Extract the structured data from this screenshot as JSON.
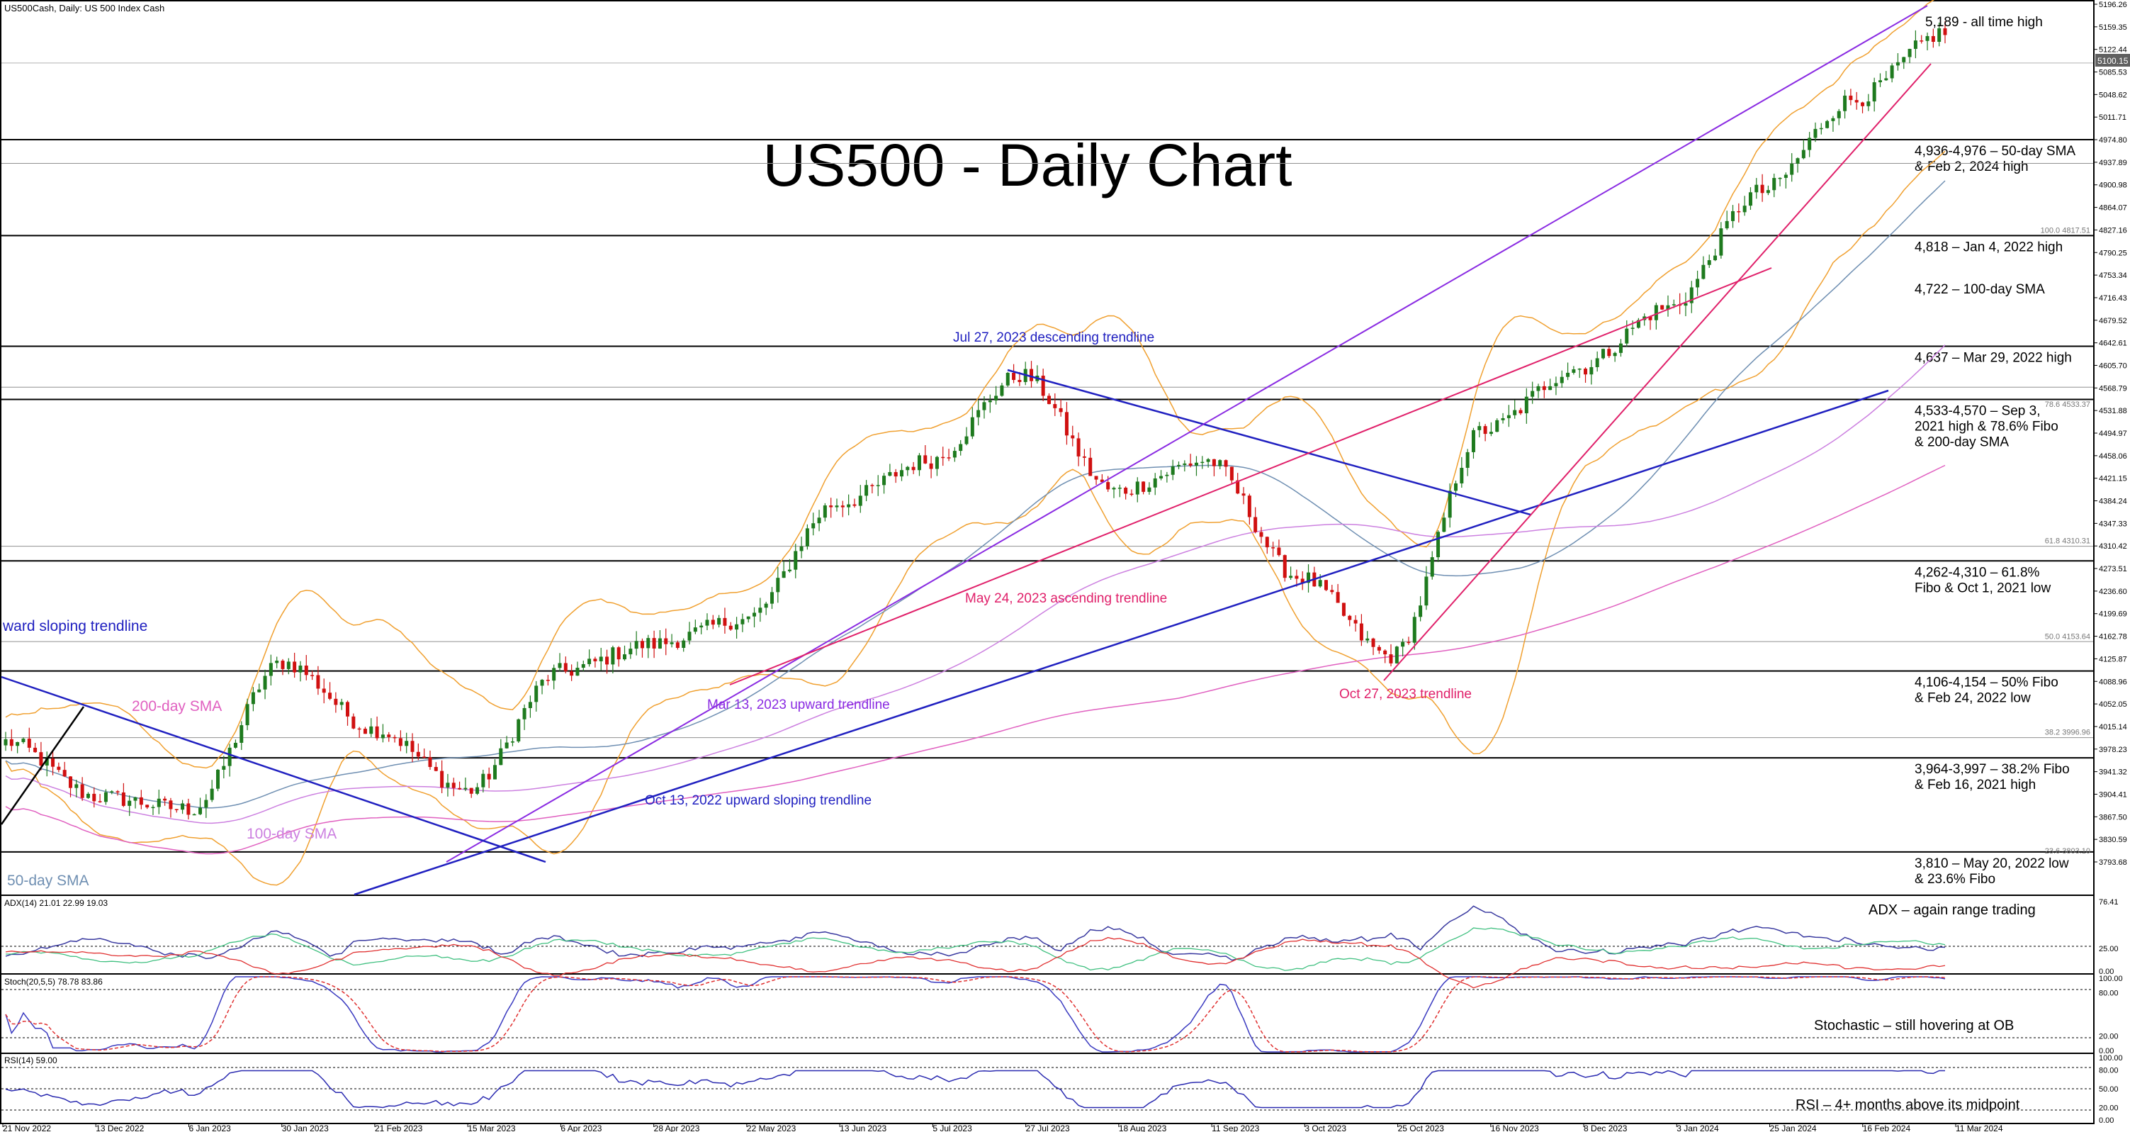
{
  "header": {
    "symbol": "US500Cash, Daily:  US 500 Index Cash",
    "title": "US500 - Daily Chart"
  },
  "price_axis": {
    "ticks": [
      "5196.26",
      "5159.35",
      "5122.44",
      "5085.53",
      "5048.62",
      "5011.71",
      "4974.80",
      "4937.89",
      "4900.98",
      "4864.07",
      "4827.16",
      "4790.25",
      "4753.34",
      "4716.43",
      "4679.52",
      "4642.61",
      "4605.70",
      "4568.79",
      "4531.88",
      "4494.97",
      "4458.06",
      "4421.15",
      "4384.24",
      "4347.33",
      "4310.42",
      "4273.51",
      "4236.60",
      "4199.69",
      "4162.78",
      "4125.87",
      "4088.96",
      "4052.05",
      "4015.14",
      "3978.23",
      "3941.32",
      "3904.41",
      "3867.50",
      "3830.59",
      "3793.68"
    ],
    "current_price": "5100.15"
  },
  "date_axis": [
    "21 Nov 2022",
    "13 Dec 2022",
    "6 Jan 2023",
    "30 Jan 2023",
    "21 Feb 2023",
    "15 Mar 2023",
    "6 Apr 2023",
    "28 Apr 2023",
    "22 May 2023",
    "13 Jun 2023",
    "5 Jul 2023",
    "27 Jul 2023",
    "18 Aug 2023",
    "11 Sep 2023",
    "3 Oct 2023",
    "25 Oct 2023",
    "16 Nov 2023",
    "8 Dec 2023",
    "3 Jan 2024",
    "25 Jan 2024",
    "16 Feb 2024",
    "11 Mar 2024"
  ],
  "levels": [
    {
      "price": 4974.8,
      "label": "4,936-4,976 – 50-day SMA\n& Feb 2, 2024 high"
    },
    {
      "price": 4818,
      "label": "4,818 – Jan 4, 2022 high"
    },
    {
      "price": 4637,
      "label": "4,637 – Mar 29, 2022 high"
    },
    {
      "price": 4550,
      "label": "4,533-4,570 – Sep 3,\n2021 high & 78.6% Fibo\n& 200-day SMA"
    },
    {
      "price": 4286,
      "label": "4,262-4,310 – 61.8%\nFibo & Oct 1, 2021 low"
    },
    {
      "price": 4106,
      "label": "4,106-4,154 – 50% Fibo\n& Feb 24, 2022 low"
    },
    {
      "price": 3964,
      "label": "3,964-3,997 – 38.2% Fibo\n& Feb 16, 2021 high"
    },
    {
      "price": 3810,
      "label": "3,810 – May 20, 2022 low\n& 23.6% Fibo"
    }
  ],
  "extra_labels": {
    "all_time_high": "5,189 - all time high",
    "sma100": "4,722 – 100-day SMA"
  },
  "fibo_marks": [
    "100.0 4817.51",
    "78.6 4533.37",
    "61.8 4310.31",
    "50.0 4153.64",
    "38.2 3996.96",
    "23.6 3803.10"
  ],
  "annotations": {
    "jul27": "Jul 27, 2023 descending trendline",
    "may24": "May 24, 2023 ascending trendline",
    "mar13": "Mar 13, 2023 upward trendline",
    "oct13": "Oct 13, 2022 upward sloping trendline",
    "oct27": "Oct 27, 2023 trendline",
    "ward": "ward sloping trendline",
    "sma200": "200-day SMA",
    "sma100": "100-day SMA",
    "sma50": "50-day SMA"
  },
  "indicators": {
    "adx": {
      "header": "ADX(14) 21.01 22.99 19.03",
      "note": "ADX – again range trading",
      "ticks": [
        "76.41",
        "25.00",
        "0.00"
      ]
    },
    "stoch": {
      "header": "Stoch(20,5,5) 78.78 83.86",
      "note": "Stochastic – still hovering at OB",
      "ticks": [
        "100.00",
        "80.00",
        "20.00",
        "0.00"
      ]
    },
    "rsi": {
      "header": "RSI(14) 59.00",
      "note": "RSI – 4+ months above its midpoint",
      "ticks": [
        "100.00",
        "80.00",
        "50.00",
        "20.00",
        "0.00"
      ]
    }
  },
  "colors": {
    "candle_up": "#1e7a1e",
    "candle_down": "#d01010",
    "bollinger": "#f0a030",
    "sma50": "#6f8fb2",
    "sma100": "#cc80e0",
    "sma200": "#e060c0",
    "trend_blue": "#2020c0",
    "trend_purple": "#8a2be2",
    "trend_pink": "#e0206a",
    "adx_main": "#3a3aa0",
    "di_plus": "#40c080",
    "di_minus": "#e03030",
    "stoch_main": "#3a3ac0",
    "stoch_signal": "#e03030"
  },
  "chart_data": {
    "type": "line",
    "title": "US500 - Daily Chart",
    "x_dates": [
      "21 Nov 2022",
      "13 Dec 2022",
      "6 Jan 2023",
      "30 Jan 2023",
      "21 Feb 2023",
      "15 Mar 2023",
      "6 Apr 2023",
      "28 Apr 2023",
      "22 May 2023",
      "13 Jun 2023",
      "5 Jul 2023",
      "27 Jul 2023",
      "18 Aug 2023",
      "11 Sep 2023",
      "3 Oct 2023",
      "25 Oct 2023",
      "16 Nov 2023",
      "8 Dec 2023",
      "3 Jan 2024",
      "25 Jan 2024",
      "16 Feb 2024",
      "11 Mar 2024"
    ],
    "series": [
      {
        "values": [
          3990,
          3900,
          3880,
          4120,
          4010,
          3910,
          4105,
          4150,
          4190,
          4380,
          4450,
          4590,
          4400,
          4450,
          4260,
          4130,
          4500,
          4600,
          4700,
          4890,
          5040,
          5150
        ]
      }
    ],
    "ylim": [
      3780,
      5200
    ],
    "grid": false
  }
}
